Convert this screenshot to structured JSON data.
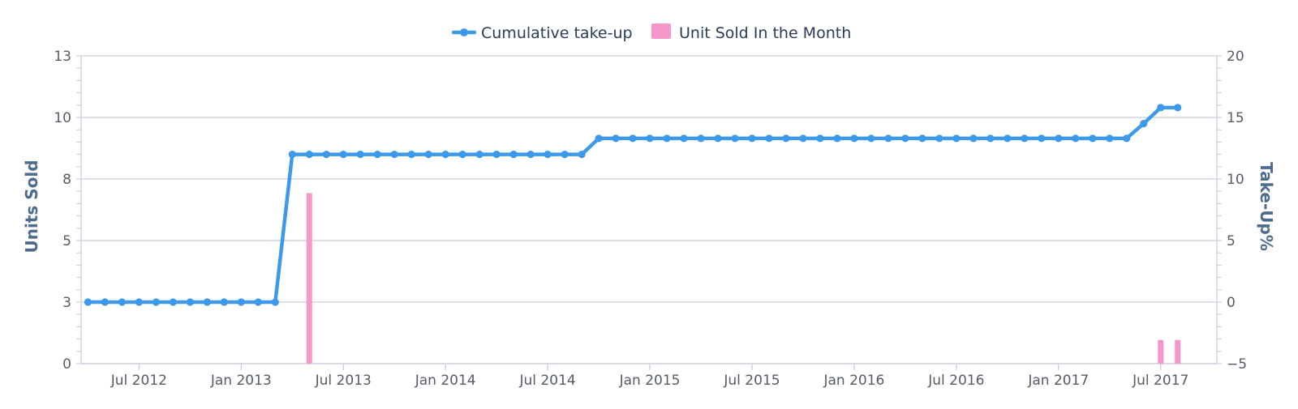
{
  "chart_data": {
    "type": "bar+line",
    "title": "",
    "legend": {
      "position": "top-center",
      "items": [
        "Cumulative take-up",
        "Unit Sold In the Month"
      ]
    },
    "x_axis": {
      "type": "datetime",
      "tick_labels": [
        "Jul 2012",
        "Jan 2013",
        "Jul 2013",
        "Jan 2014",
        "Jul 2014",
        "Jan 2015",
        "Jul 2015",
        "Jan 2016",
        "Jul 2016",
        "Jan 2017",
        "Jul 2017"
      ],
      "range": [
        "2012-03",
        "2017-10"
      ]
    },
    "y_axis_left": {
      "title": "Units Sold",
      "min": 0,
      "max": 13,
      "tick_values": [
        0,
        2.6,
        5.2,
        7.8,
        10.4,
        13
      ],
      "tick_labels": [
        "0",
        "3",
        "5",
        "8",
        "10",
        "13"
      ]
    },
    "y_axis_right": {
      "title": "Take-Up%",
      "min": -5,
      "max": 20,
      "ticks": [
        -5,
        0,
        5,
        10,
        15,
        20
      ],
      "tick_labels": [
        "−5",
        "0",
        "5",
        "10",
        "15",
        "20"
      ]
    },
    "grid": true,
    "series": [
      {
        "name": "Cumulative take-up",
        "type": "line",
        "axis": "right",
        "color": "#3d99ea",
        "start_month": "2012-04",
        "values": [
          0,
          0,
          0,
          0,
          0,
          0,
          0,
          0,
          0,
          0,
          0,
          0,
          12,
          12,
          12,
          12,
          12,
          12,
          12,
          12,
          12,
          12,
          12,
          12,
          12,
          12,
          12,
          12,
          12,
          12,
          13.3,
          13.3,
          13.3,
          13.3,
          13.3,
          13.3,
          13.3,
          13.3,
          13.3,
          13.3,
          13.3,
          13.3,
          13.3,
          13.3,
          13.3,
          13.3,
          13.3,
          13.3,
          13.3,
          13.3,
          13.3,
          13.3,
          13.3,
          13.3,
          13.3,
          13.3,
          13.3,
          13.3,
          13.3,
          13.3,
          13.3,
          13.3,
          14.5,
          15.8,
          15.8
        ]
      },
      {
        "name": "Unit Sold In the Month",
        "type": "bar",
        "axis": "left",
        "color": "#f797c9",
        "points": [
          {
            "x": "2013-05",
            "y": 7.2
          },
          {
            "x": "2017-07",
            "y": 1.0
          },
          {
            "x": "2017-08",
            "y": 1.0
          }
        ]
      }
    ]
  }
}
